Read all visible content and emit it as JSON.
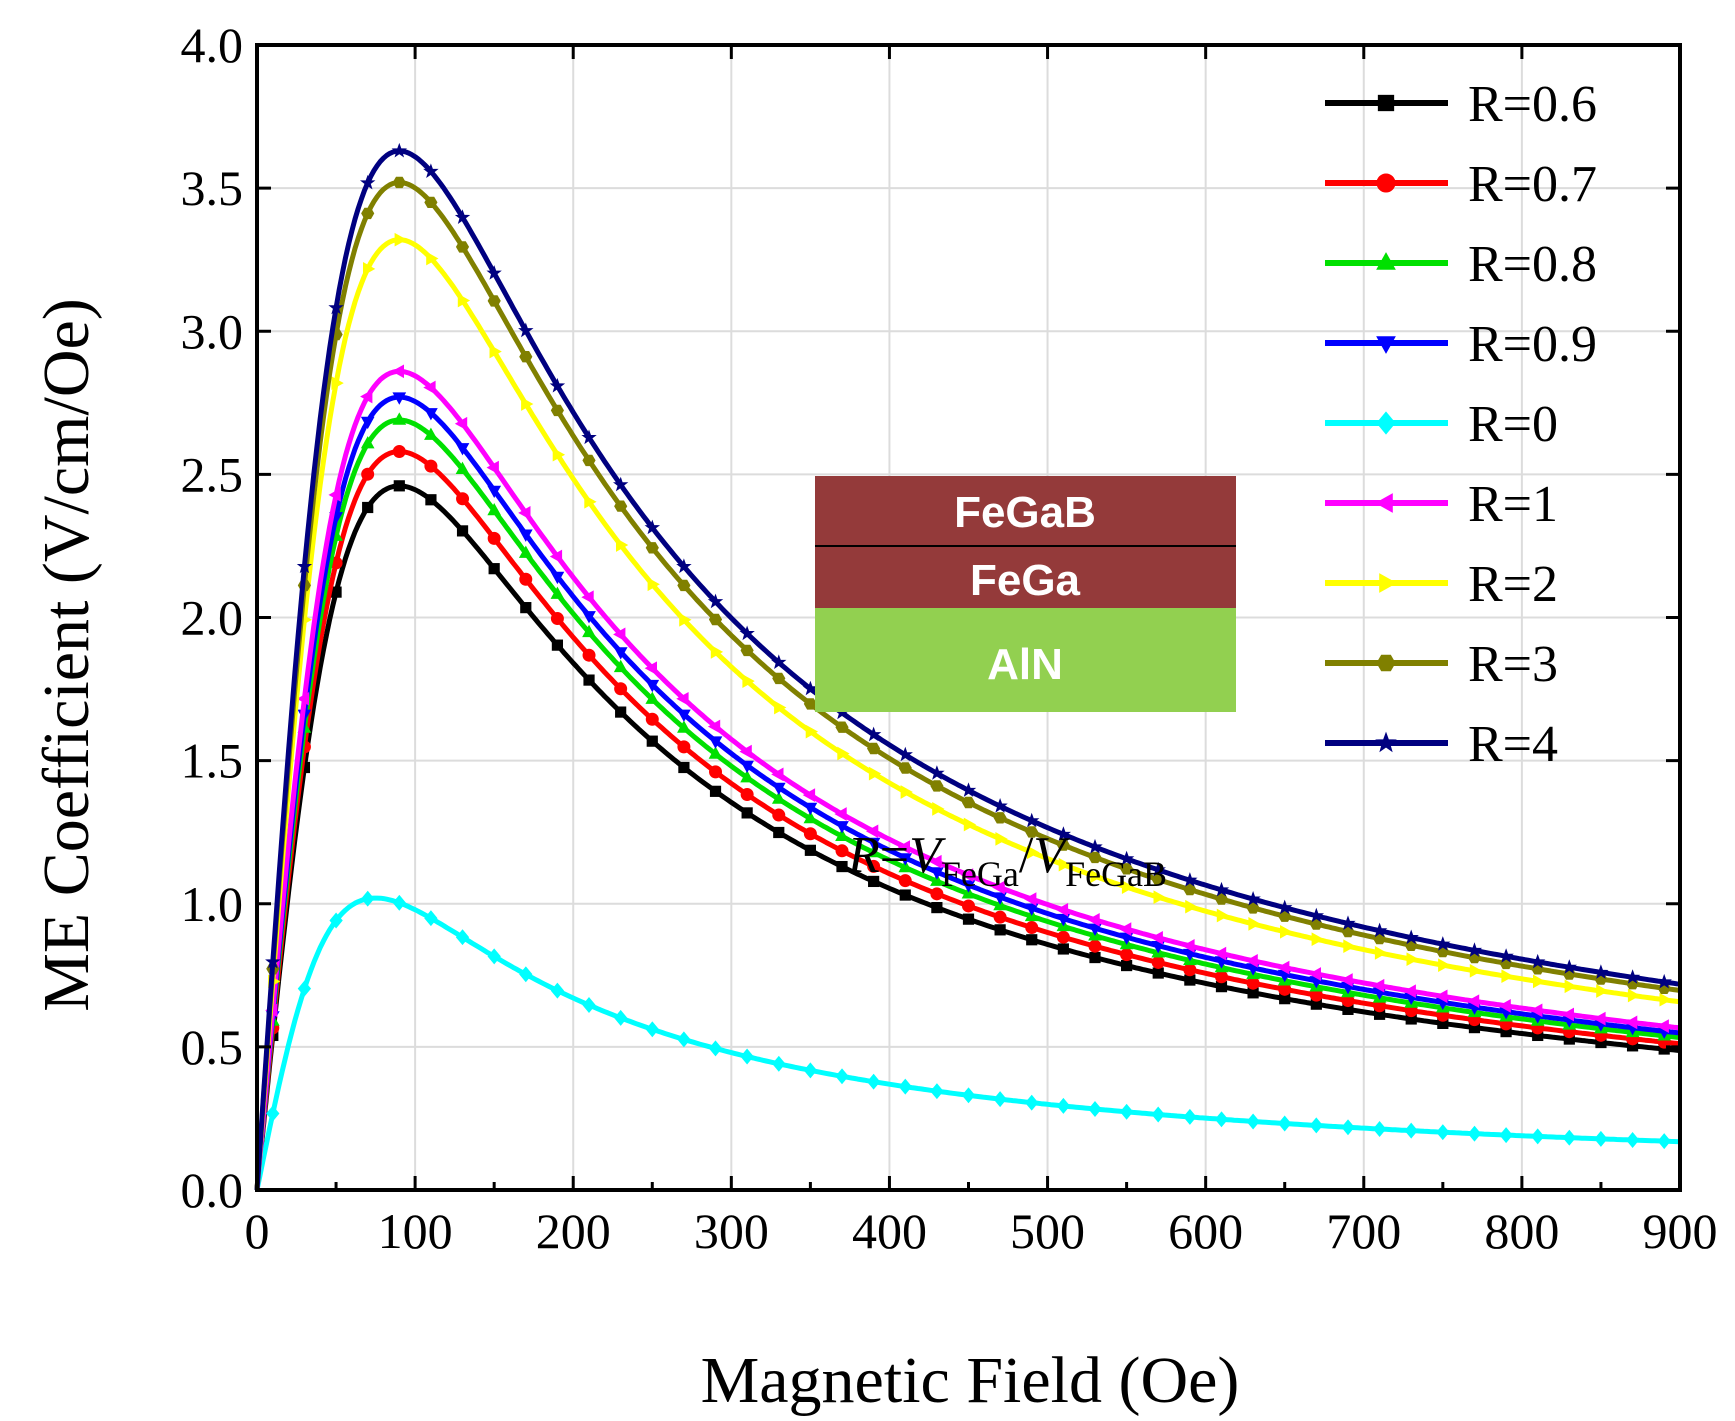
{
  "chart_data": {
    "type": "line",
    "title": "",
    "xlabel": "Magnetic Field (Oe)",
    "ylabel": "ME Coefficient (V/cm/Oe)",
    "xlim": [
      0,
      900
    ],
    "ylim": [
      0,
      4.0
    ],
    "xticks": [
      "0",
      "100",
      "200",
      "300",
      "400",
      "500",
      "600",
      "700",
      "800",
      "900"
    ],
    "yticks": [
      "0.0",
      "0.5",
      "1.0",
      "1.5",
      "2.0",
      "2.5",
      "3.0",
      "3.5",
      "4.0"
    ],
    "grid": true,
    "legend_position": "top-right",
    "model": "x^2 + peak^2 law: y = 2*A*p*x/(x^2+p^2)",
    "series": [
      {
        "name": "R=0.6",
        "color": "#000000",
        "marker": "square",
        "peak_field": 90,
        "peak_value": 2.46
      },
      {
        "name": "R=0.7",
        "color": "#ff0000",
        "marker": "circle",
        "peak_field": 90,
        "peak_value": 2.58
      },
      {
        "name": "R=0.8",
        "color": "#00e000",
        "marker": "triangle-up",
        "peak_field": 90,
        "peak_value": 2.69
      },
      {
        "name": "R=0.9",
        "color": "#0000ff",
        "marker": "triangle-down",
        "peak_field": 90,
        "peak_value": 2.77
      },
      {
        "name": "R=0",
        "color": "#00ffff",
        "marker": "diamond",
        "peak_field": 75,
        "peak_value": 1.02
      },
      {
        "name": "R=1",
        "color": "#ff00ff",
        "marker": "triangle-left",
        "peak_field": 90,
        "peak_value": 2.86
      },
      {
        "name": "R=2",
        "color": "#ffff00",
        "marker": "triangle-right",
        "peak_field": 90,
        "peak_value": 3.32
      },
      {
        "name": "R=3",
        "color": "#808000",
        "marker": "hexagon",
        "peak_field": 90,
        "peak_value": 3.52
      },
      {
        "name": "R=4",
        "color": "#000080",
        "marker": "star",
        "peak_field": 90,
        "peak_value": 3.63
      }
    ],
    "annotations": {
      "inset_layers": [
        "FeGaB",
        "FeGa",
        "AlN"
      ],
      "inset_colors": [
        "#943a3a",
        "#943a3a",
        "#92d050"
      ],
      "formula": {
        "R": "R",
        "eq": "=",
        "V": "V",
        "sub1": "FeGa",
        "slash": "/",
        "sub2": "FeGaB"
      }
    }
  }
}
